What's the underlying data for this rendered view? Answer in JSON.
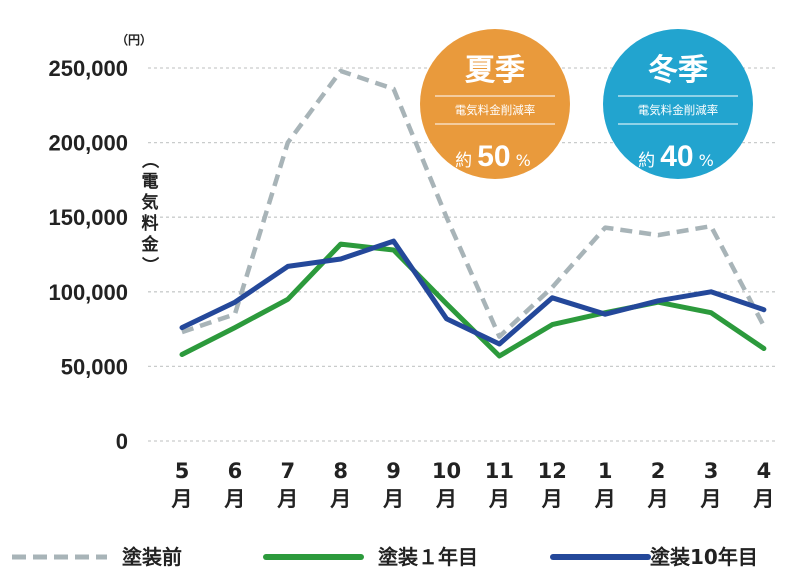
{
  "chart_data": {
    "type": "line",
    "unit_label": "（円）",
    "ylabel": "（電気料金）",
    "ylim": [
      0,
      250000
    ],
    "yticks": [
      {
        "value": 0,
        "label": "0"
      },
      {
        "value": 50000,
        "label": "50,000"
      },
      {
        "value": 100000,
        "label": "100,000"
      },
      {
        "value": 150000,
        "label": "150,000"
      },
      {
        "value": 200000,
        "label": "200,000"
      },
      {
        "value": 250000,
        "label": "250,000"
      }
    ],
    "categories": [
      {
        "num": "5",
        "suffix": "月"
      },
      {
        "num": "6",
        "suffix": "月"
      },
      {
        "num": "7",
        "suffix": "月"
      },
      {
        "num": "8",
        "suffix": "月"
      },
      {
        "num": "9",
        "suffix": "月"
      },
      {
        "num": "10",
        "suffix": "月"
      },
      {
        "num": "11",
        "suffix": "月"
      },
      {
        "num": "12",
        "suffix": "月"
      },
      {
        "num": "1",
        "suffix": "月"
      },
      {
        "num": "2",
        "suffix": "月"
      },
      {
        "num": "3",
        "suffix": "月"
      },
      {
        "num": "4",
        "suffix": "月"
      }
    ],
    "series": [
      {
        "name": "塗装前",
        "color": "#a8b4b8",
        "style": "dashed",
        "values": [
          73000,
          85000,
          200000,
          248000,
          236000,
          150000,
          70000,
          103000,
          143000,
          138000,
          144000,
          77000
        ]
      },
      {
        "name": "塗装１年目",
        "color": "#2c9a3c",
        "style": "solid",
        "values": [
          58000,
          76000,
          95000,
          132000,
          128000,
          92000,
          57000,
          78000,
          86000,
          93000,
          86000,
          62000
        ]
      },
      {
        "name": "塗装10年目",
        "color": "#24489a",
        "style": "solid",
        "values": [
          76000,
          93000,
          117000,
          122000,
          134000,
          82000,
          65000,
          96000,
          85000,
          94000,
          100000,
          88000
        ]
      }
    ],
    "badges": [
      {
        "title": "夏季",
        "subtitle": "電気料金削減率",
        "prefix": "約",
        "number": "50",
        "suffix": "%",
        "color": "#e99a3c"
      },
      {
        "title": "冬季",
        "subtitle": "電気料金削減率",
        "prefix": "約",
        "number": "40",
        "suffix": "%",
        "color": "#22a4cf"
      }
    ]
  }
}
